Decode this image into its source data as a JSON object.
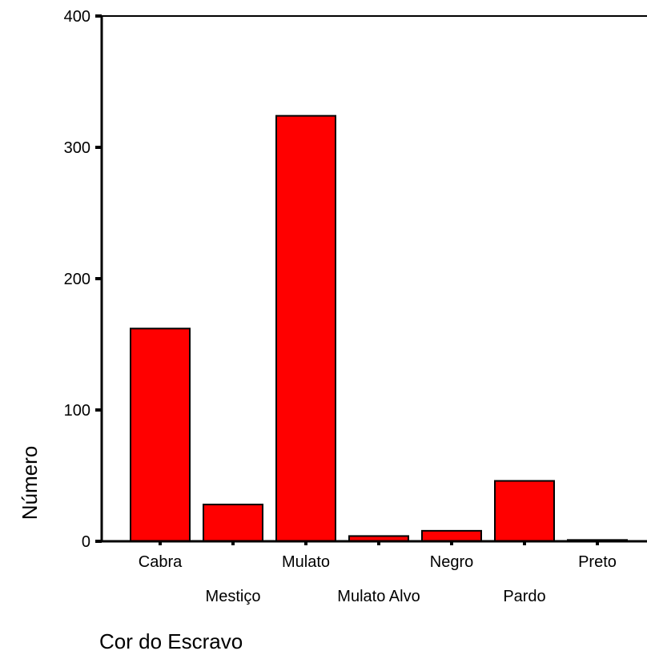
{
  "chart_data": {
    "type": "bar",
    "xlabel": "Cor do Escravo",
    "ylabel": "Número",
    "categories": [
      "Cabra",
      "Mestiço",
      "Mulato",
      "Mulato Alvo",
      "Negro",
      "Pardo",
      "Preto"
    ],
    "values": [
      162,
      28,
      324,
      4,
      8,
      46,
      1
    ],
    "ylim": [
      0,
      400
    ],
    "yticks": [
      0,
      100,
      200,
      300,
      400
    ],
    "bar_color": "#ff0000",
    "grid": false,
    "legend": "none"
  }
}
